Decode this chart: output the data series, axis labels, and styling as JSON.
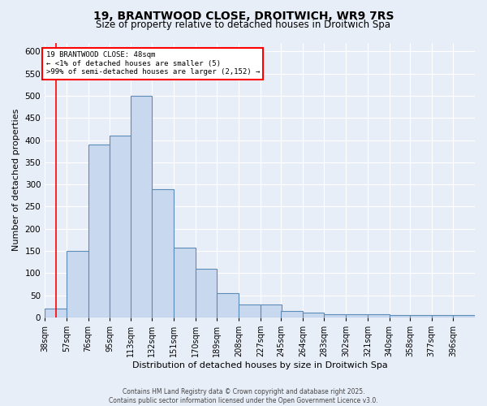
{
  "title": "19, BRANTWOOD CLOSE, DROITWICH, WR9 7RS",
  "subtitle": "Size of property relative to detached houses in Droitwich Spa",
  "xlabel": "Distribution of detached houses by size in Droitwich Spa",
  "ylabel": "Number of detached properties",
  "bin_edges": [
    38,
    57,
    76,
    95,
    113,
    132,
    151,
    170,
    189,
    208,
    227,
    245,
    264,
    283,
    302,
    321,
    340,
    358,
    377,
    396,
    415
  ],
  "bar_heights": [
    20,
    150,
    390,
    410,
    500,
    290,
    157,
    110,
    55,
    30,
    30,
    15,
    10,
    7,
    7,
    7,
    5,
    5,
    5,
    5
  ],
  "bar_color": "#c8d8ee",
  "bar_edge_color": "#5b8db8",
  "background_color": "#e8eef8",
  "grid_color": "#c8d0e0",
  "red_line_x": 48,
  "annotation_line1": "19 BRANTWOOD CLOSE: 48sqm",
  "annotation_line2": "← <1% of detached houses are smaller (5)",
  "annotation_line3": ">99% of semi-detached houses are larger (2,152) →",
  "ylim": [
    0,
    620
  ],
  "yticks": [
    0,
    50,
    100,
    150,
    200,
    250,
    300,
    350,
    400,
    450,
    500,
    550,
    600
  ],
  "footer_text": "Contains HM Land Registry data © Crown copyright and database right 2025.\nContains public sector information licensed under the Open Government Licence v3.0.",
  "title_fontsize": 10,
  "subtitle_fontsize": 8.5,
  "axis_label_fontsize": 8,
  "tick_fontsize": 7.5,
  "footer_fontsize": 5.5
}
